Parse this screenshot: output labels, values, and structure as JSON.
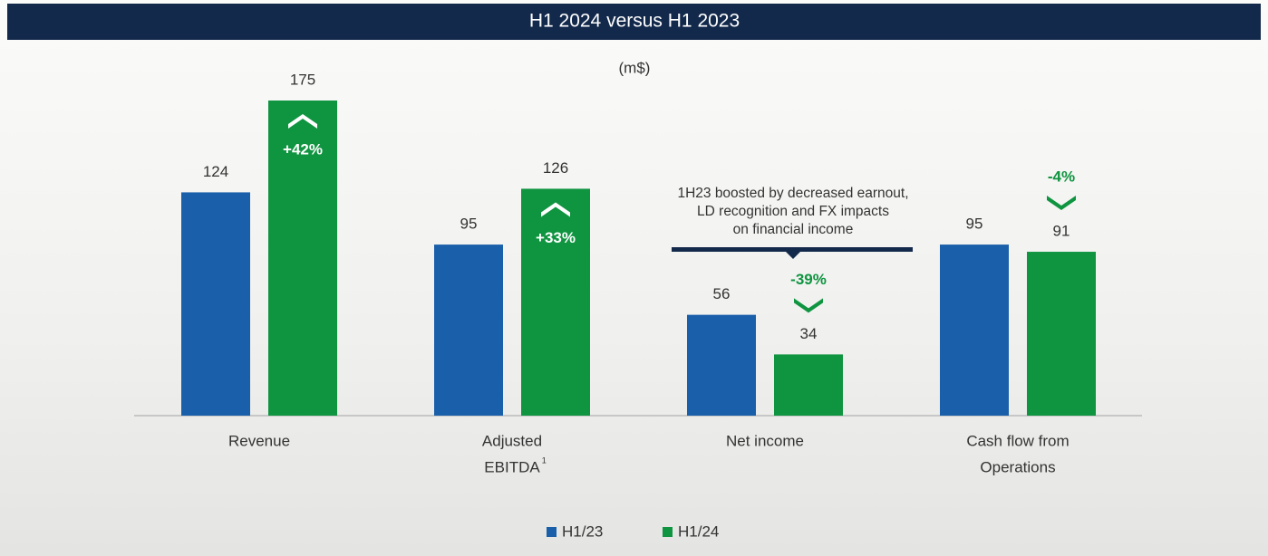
{
  "chart_data": {
    "type": "bar",
    "title": "H1 2024 versus H1 2023",
    "unit_label": "(m$)",
    "categories": [
      [
        "Revenue"
      ],
      [
        "Adjusted",
        "EBITDA"
      ],
      [
        "Net income"
      ],
      [
        "Cash flow from",
        "Operations"
      ]
    ],
    "superscripts": [
      null,
      "1",
      null,
      null
    ],
    "series": [
      {
        "name": "H1/23",
        "color": "#1a5faa",
        "values": [
          124,
          95,
          56,
          95
        ]
      },
      {
        "name": "H1/24",
        "color": "#0f9440",
        "values": [
          175,
          126,
          34,
          91
        ]
      }
    ],
    "changes": [
      42,
      33,
      -39,
      -4
    ],
    "change_labels": [
      "+42%",
      "+33%",
      "-39%",
      "-4%"
    ],
    "annotation": [
      "1H23 boosted by decreased earnout,",
      "LD recognition and FX impacts",
      "on financial income"
    ],
    "legend": "bottom"
  }
}
